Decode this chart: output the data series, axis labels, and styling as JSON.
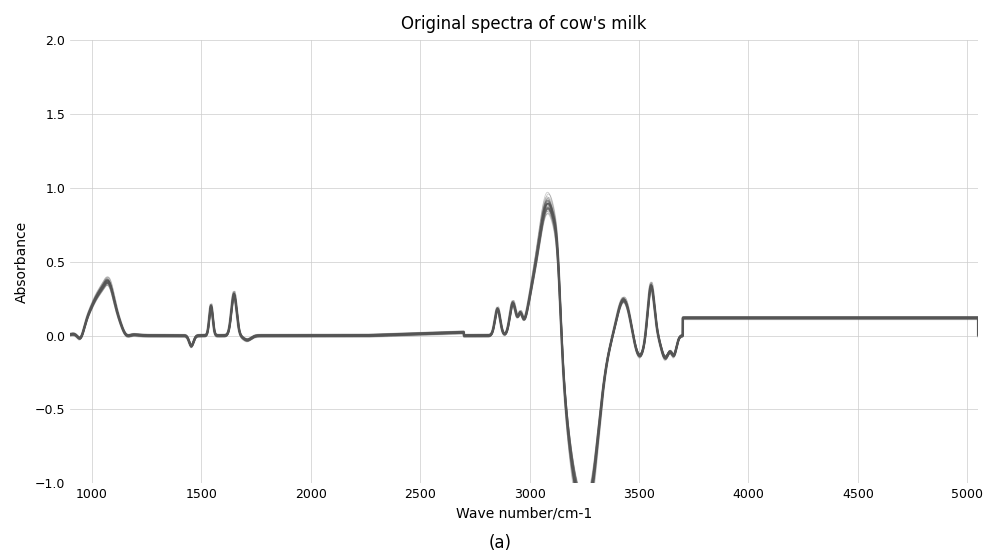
{
  "title": "Original spectra of cow's milk",
  "xlabel": "Wave number/cm-1",
  "ylabel": "Absorbance",
  "caption": "(a)",
  "xlim": [
    900,
    5050
  ],
  "ylim": [
    -1.0,
    2.0
  ],
  "xticks": [
    1000,
    1500,
    2000,
    2500,
    3000,
    3500,
    4000,
    4500,
    5000
  ],
  "yticks": [
    -1.0,
    -0.5,
    0.0,
    0.5,
    1.0,
    1.5,
    2.0
  ],
  "line_color": "#555555",
  "line_alpha": 0.3,
  "line_width": 0.6,
  "n_spectra": 50,
  "background_color": "#ffffff",
  "grid_color": "#cccccc",
  "title_fontsize": 12,
  "label_fontsize": 10
}
